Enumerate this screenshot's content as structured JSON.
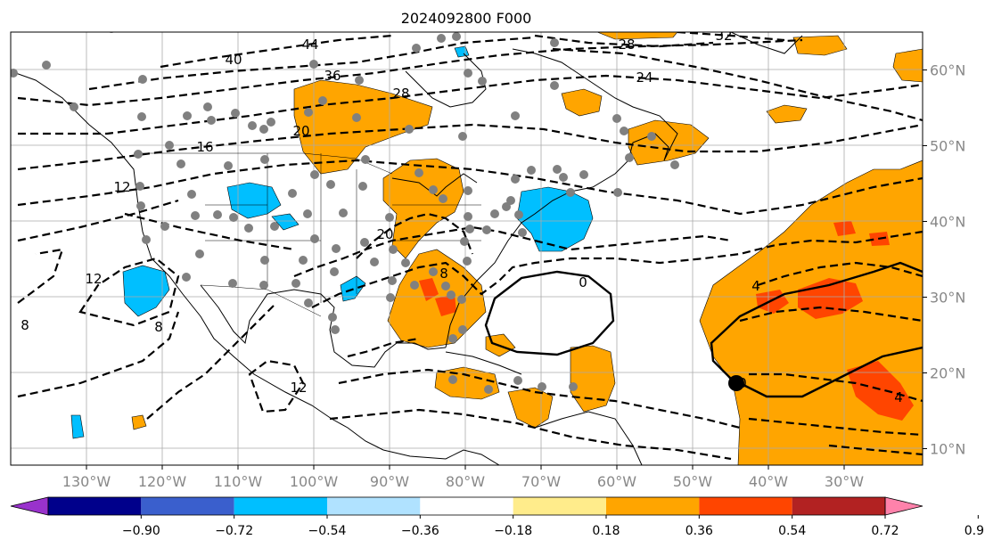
{
  "title": "2024092800 F000",
  "map": {
    "lon_ticks": [
      {
        "lon": -130,
        "label": "130°W"
      },
      {
        "lon": -120,
        "label": "120°W"
      },
      {
        "lon": -110,
        "label": "110°W"
      },
      {
        "lon": -100,
        "label": "100°W"
      },
      {
        "lon": -90,
        "label": "90°W"
      },
      {
        "lon": -80,
        "label": "80°W"
      },
      {
        "lon": -70,
        "label": "70°W"
      },
      {
        "lon": -60,
        "label": "60°W"
      },
      {
        "lon": -50,
        "label": "50°W"
      },
      {
        "lon": -40,
        "label": "40°W"
      },
      {
        "lon": -30,
        "label": "30°W"
      }
    ],
    "lat_ticks": [
      {
        "lat": 60,
        "label": "60°N"
      },
      {
        "lat": 50,
        "label": "50°N"
      },
      {
        "lat": 40,
        "label": "40°N"
      },
      {
        "lat": 30,
        "label": "30°N"
      },
      {
        "lat": 20,
        "label": "20°N"
      },
      {
        "lat": 10,
        "label": "10°N"
      }
    ],
    "contour_labels": [
      "44",
      "40",
      "36",
      "28",
      "32",
      "20",
      "16",
      "12",
      "28",
      "24",
      "12",
      "8",
      "8",
      "12",
      "20",
      "8",
      "4",
      "0",
      "0",
      "4"
    ],
    "colors": {
      "orange": "#ffa500",
      "red_orange": "#ff4500",
      "light_blue": "#00bfff",
      "marker_gray": "#808080"
    }
  },
  "colorbar": {
    "colors": [
      "#9932cc",
      "#00008b",
      "#3a5fcd",
      "#00bfff",
      "#b0e2ff",
      "#ffffff",
      "#ffec8b",
      "#ffa500",
      "#ff4500",
      "#b22222",
      "#ff82ab"
    ],
    "labels": [
      "−0.90",
      "−0.72",
      "−0.54",
      "−0.36",
      "−0.18",
      "0.18",
      "0.36",
      "0.54",
      "0.72",
      "0.90"
    ]
  }
}
